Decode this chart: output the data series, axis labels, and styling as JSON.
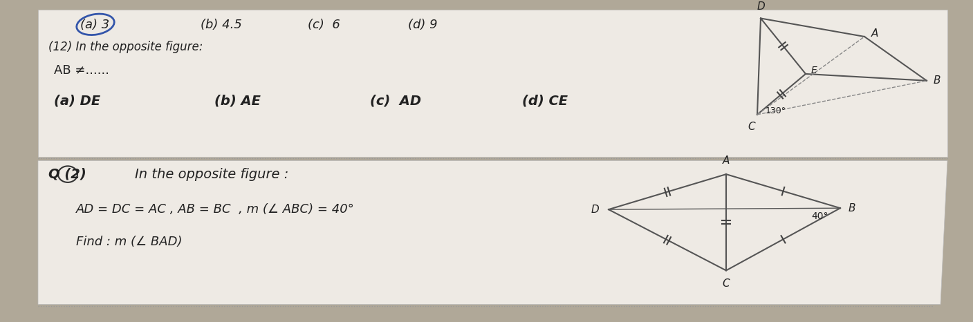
{
  "bg_color": "#b0a898",
  "paper_color": "#eeeae4",
  "title_q12": "(12) In the opposite figure:",
  "ab_line": "AB ≠......",
  "options_q12": [
    "(a) DE",
    "(b) AE",
    "(c)  AD",
    "(d) CE"
  ],
  "answer_row1": [
    "(a) 3",
    "(b) 4.5",
    "(c)  6",
    "(d) 9"
  ],
  "q2_label": "Q (2)",
  "q2_title": "In the opposite figure :",
  "q2_condition": "AD = DC = AC , AB = BC  , m (∠ ABC) = 40°",
  "q2_find": "Find : m (∠ BAD)",
  "angle_130": "130°",
  "angle_40": "40°"
}
